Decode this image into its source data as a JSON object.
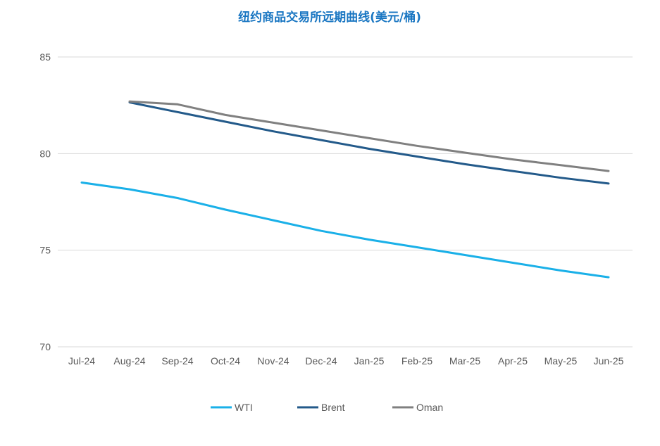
{
  "chart_data": {
    "type": "line",
    "title": "纽约商品交易所远期曲线(美元/桶)",
    "xlabel": "",
    "ylabel": "",
    "categories": [
      "Jul-24",
      "Aug-24",
      "Sep-24",
      "Oct-24",
      "Nov-24",
      "Dec-24",
      "Jan-25",
      "Feb-25",
      "Mar-25",
      "Apr-25",
      "May-25",
      "Jun-25"
    ],
    "ylim": [
      70,
      85
    ],
    "yticks": [
      "70",
      "75",
      "80",
      "85"
    ],
    "grid": true,
    "legend_position": "bottom",
    "series": [
      {
        "name": "WTI",
        "color": "#1ab0e8",
        "values": [
          78.5,
          78.15,
          77.7,
          77.1,
          76.55,
          76.0,
          75.55,
          75.15,
          74.75,
          74.35,
          73.95,
          73.6
        ]
      },
      {
        "name": "Brent",
        "color": "#235a8a",
        "values": [
          null,
          82.65,
          82.15,
          81.65,
          81.15,
          80.7,
          80.25,
          79.85,
          79.45,
          79.1,
          78.75,
          78.45
        ]
      },
      {
        "name": "Oman",
        "color": "#808080",
        "values": [
          null,
          82.7,
          82.55,
          82.0,
          81.6,
          81.2,
          80.8,
          80.4,
          80.05,
          79.7,
          79.4,
          79.1
        ]
      }
    ]
  },
  "colors": {
    "title": "#1976c2",
    "grid": "#d9d9d9",
    "axis_text": "#595959"
  }
}
